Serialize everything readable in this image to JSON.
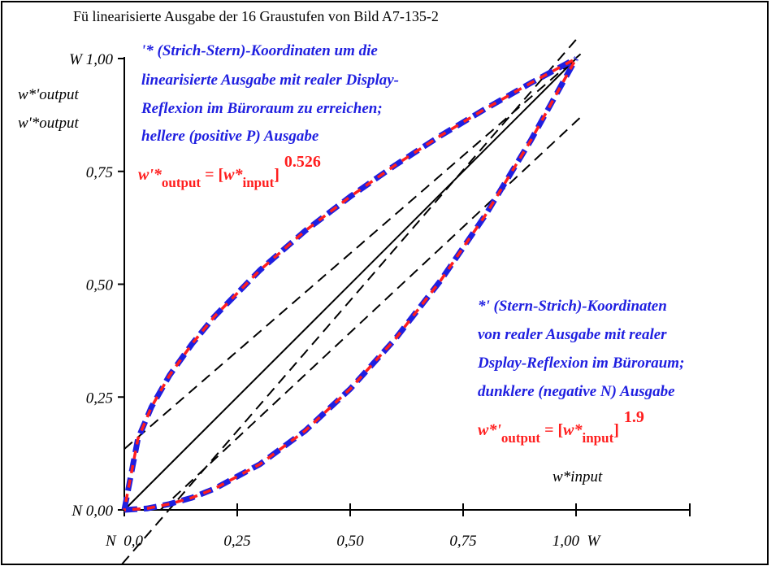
{
  "chart_data": {
    "type": "line",
    "title": "Fü linearisierte Ausgabe der 16 Graustufen von Bild A7-135-2",
    "xlim": [
      0,
      1
    ],
    "ylim": [
      0,
      1
    ],
    "x_ticks": [
      0,
      0.25,
      0.5,
      0.75,
      1.0
    ],
    "y_ticks": [
      0,
      0.25,
      0.5,
      0.75,
      1.0
    ],
    "x_tick_labels": [
      "N  0,0",
      "0,25",
      "0,50",
      "0,75",
      "1,00  W"
    ],
    "y_tick_labels": [
      "N 0,00",
      "0,25",
      "0,50",
      "0,75",
      "W 1,00"
    ],
    "y_axis_title": [
      "w*'output",
      "w'*output"
    ],
    "x_axis_title": "w*input",
    "colors": {
      "series_red": "#ff1e1e",
      "series_blue": "#1f1fe0",
      "reference": "#000000"
    },
    "series": [
      {
        "exponent": 0.526,
        "x": [
          0,
          0.03,
          0.06,
          0.1,
          0.15,
          0.2,
          0.3,
          0.4,
          0.5,
          0.6,
          0.7,
          0.8,
          0.9,
          1.0
        ],
        "y": [
          0,
          0.157,
          0.228,
          0.298,
          0.368,
          0.429,
          0.531,
          0.618,
          0.694,
          0.764,
          0.829,
          0.889,
          0.946,
          1.0
        ]
      },
      {
        "exponent": 1.9,
        "x": [
          0,
          0.05,
          0.1,
          0.15,
          0.2,
          0.3,
          0.4,
          0.5,
          0.6,
          0.7,
          0.8,
          0.9,
          1.0
        ],
        "y": [
          0,
          0.003,
          0.013,
          0.027,
          0.047,
          0.101,
          0.175,
          0.268,
          0.379,
          0.508,
          0.654,
          0.819,
          1.0
        ]
      }
    ],
    "reference_lines": [
      {
        "style": "solid",
        "x": [
          0,
          1
        ],
        "y": [
          0,
          1
        ]
      },
      {
        "style": "dashed",
        "x": [
          0,
          1.01
        ],
        "y": [
          0.135,
          1.01
        ]
      },
      {
        "style": "dashed",
        "x": [
          -0.005,
          1.007
        ],
        "y": [
          -0.12,
          1.05
        ]
      },
      {
        "style": "dashed",
        "x": [
          0.08,
          1.01
        ],
        "y": [
          0,
          0.87
        ]
      }
    ],
    "annotations": {
      "positive": {
        "lines": [
          "'* (Strich-Stern)-Koordinaten um die",
          "linearisierte Ausgabe mit realer Display-",
          "Reflexion im Büroraum zu erreichen;",
          "hellere (positive P) Ausgabe"
        ],
        "formula": {
          "lhs": "w'*",
          "lhs_sub": "output",
          "eq": " = [",
          "var": "w*",
          "var_sub": "input",
          "close": "]",
          "exp": "0.526"
        }
      },
      "negative": {
        "lines": [
          "*' (Stern-Strich)-Koordinaten",
          "von realer Ausgabe mit realer",
          "Dsplay-Reflexion im Büroraum;",
          "dunklere (negative N) Ausgabe"
        ],
        "formula": {
          "lhs": "w*'",
          "lhs_sub": "output",
          "eq": " = [",
          "var": "w*",
          "var_sub": "input",
          "close": "]",
          "exp": "1.9"
        }
      }
    }
  }
}
